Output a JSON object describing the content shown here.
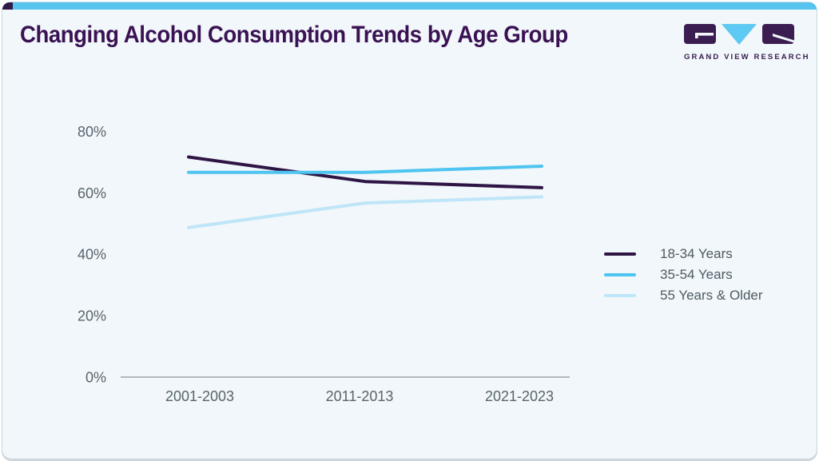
{
  "page": {
    "title": "Changing Alcohol Consumption Trends by Age Group"
  },
  "logo": {
    "text": "GRAND VIEW RESEARCH"
  },
  "colors": {
    "accent_topbar": "#57c3ef",
    "accent_topbar_left": "#2f1b46",
    "title_text": "#3a1253",
    "card_background": "#f1f7fa",
    "card_border": "#c9d6de",
    "axis_text": "#59646d",
    "axis_line": "#8b939a",
    "legend_text": "#4e5a64",
    "logo_purple": "#3b1d52",
    "logo_blue": "#5ec9f2"
  },
  "chart_data": {
    "type": "line",
    "title": "Changing Alcohol Consumption Trends by Age Group",
    "categories": [
      "2001-2003",
      "2011-2013",
      "2021-2023"
    ],
    "series": [
      {
        "name": "18-34 Years",
        "color": "#2e1545",
        "values": [
          72,
          64,
          62
        ]
      },
      {
        "name": "35-54 Years",
        "color": "#4ec4f0",
        "values": [
          67,
          67,
          69
        ]
      },
      {
        "name": "55 Years & Older",
        "color": "#bfe5f8",
        "values": [
          49,
          57,
          59
        ]
      }
    ],
    "xlabel": "",
    "ylabel": "",
    "ylim": [
      0,
      80
    ],
    "yticks": [
      0,
      20,
      40,
      60,
      80
    ],
    "ytick_suffix": "%",
    "grid": false,
    "legend_position": "right"
  }
}
